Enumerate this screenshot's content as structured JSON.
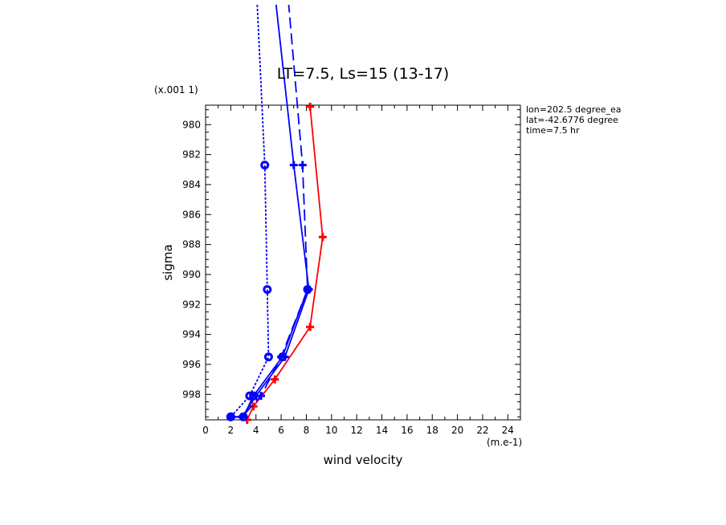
{
  "chart_data": {
    "type": "line",
    "title": "LT=7.5, Ls=15 (13-17)",
    "xlabel": "wind velocity",
    "ylabel": "sigma",
    "x_scale_label": "(m.e-1)",
    "y_scale_label": "(x.001 1)",
    "xlim": [
      0,
      25
    ],
    "ylim": [
      999.7,
      978.7
    ],
    "x_ticks": [
      "0",
      "2",
      "4",
      "6",
      "8",
      "10",
      "12",
      "14",
      "16",
      "18",
      "20",
      "22",
      "24"
    ],
    "y_ticks": [
      "980",
      "982",
      "984",
      "986",
      "988",
      "990",
      "992",
      "994",
      "996",
      "998"
    ],
    "annotations": [
      "lon=202.5 degree_ea",
      "lat=-42.6776 degree",
      "time=7.5 hr"
    ],
    "series": [
      {
        "color": "#ff0000",
        "line": "solid",
        "marker": "plus",
        "points": [
          [
            3.3,
            999.7
          ],
          [
            3.8,
            998.8
          ],
          [
            5.5,
            997.0
          ],
          [
            8.3,
            993.5
          ],
          [
            9.3,
            987.5
          ],
          [
            8.3,
            978.8
          ]
        ]
      },
      {
        "color": "#0000ff",
        "line": "solid",
        "marker": "plus",
        "points": [
          [
            2.0,
            999.5
          ],
          [
            2.9,
            999.5
          ],
          [
            4.0,
            998.1
          ],
          [
            6.3,
            995.5
          ],
          [
            8.2,
            991.0
          ],
          [
            7.0,
            982.7
          ],
          [
            5.6,
            972.0
          ]
        ]
      },
      {
        "color": "#0000ff",
        "line": "dashed",
        "marker": "plus",
        "points": [
          [
            2.0,
            999.5
          ],
          [
            2.9,
            999.5
          ],
          [
            4.4,
            998.1
          ],
          [
            6.0,
            995.5
          ],
          [
            8.1,
            991.0
          ],
          [
            7.7,
            982.7
          ],
          [
            6.6,
            972.0
          ]
        ]
      },
      {
        "color": "#0000ff",
        "line": "solid",
        "marker": "circle",
        "points": [
          [
            2.0,
            999.5
          ],
          [
            3.0,
            999.5
          ],
          [
            3.8,
            998.1
          ],
          [
            6.1,
            995.5
          ],
          [
            8.1,
            991.0
          ]
        ]
      },
      {
        "color": "#0000ff",
        "line": "dotted",
        "marker": "circle",
        "points": [
          [
            2.0,
            999.5
          ],
          [
            3.5,
            998.1
          ],
          [
            5.0,
            995.5
          ],
          [
            4.9,
            991.0
          ],
          [
            4.7,
            982.7
          ],
          [
            4.1,
            972.0
          ]
        ]
      }
    ]
  }
}
